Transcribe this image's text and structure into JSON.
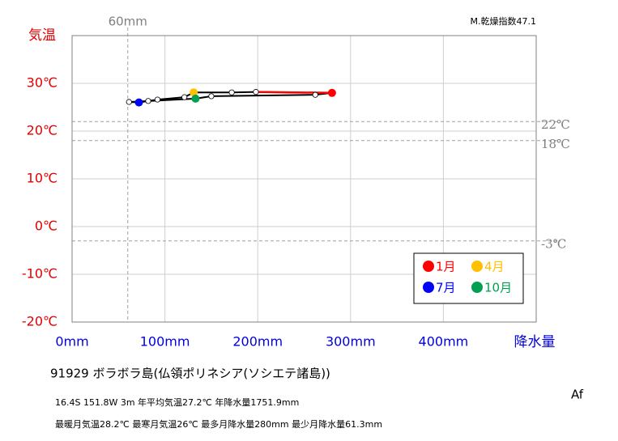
{
  "chart_data": {
    "type": "line",
    "title": "91929  ボラボラ島(仏領ポリネシア(ソシエテ諸島))",
    "info": [
      "16.4S  151.8W 3m  年平均気温27.2℃ 年降水量1751.9mm",
      "最暖月気温28.2℃ 最寒月気温26℃ 最多月降水量280mm 最少月降水量61.3mm"
    ],
    "climate_class": "Af",
    "index_label": "M.乾燥指数47.1",
    "x_label": "降水量",
    "y_label": "気温",
    "x": [
      280,
      198,
      172,
      131,
      121,
      92,
      72,
      61.3,
      82,
      133,
      150,
      262
    ],
    "values": [
      28.0,
      28.2,
      28.1,
      28.1,
      27.1,
      26.6,
      26.0,
      26.1,
      26.3,
      26.8,
      27.3,
      27.6
    ],
    "point_colors": [
      "#ff0000",
      "#ffffff",
      "#ffffff",
      "#ffc000",
      "#ffffff",
      "#ffffff",
      "#0000ff",
      "#ffffff",
      "#ffffff",
      "#00a050",
      "#ffffff",
      "#ffffff"
    ],
    "line_color": "#000000",
    "first_segment_color": "#ff0000",
    "legend": [
      {
        "name": "1月",
        "color": "#ff0000"
      },
      {
        "name": "4月",
        "color": "#ffc000"
      },
      {
        "name": "7月",
        "color": "#0000ff"
      },
      {
        "name": "10月",
        "color": "#00a050"
      }
    ],
    "xlim": [
      0,
      500
    ],
    "xticks": [
      {
        "value": 0,
        "label": "0mm"
      },
      {
        "value": 100,
        "label": "100mm"
      },
      {
        "value": 200,
        "label": "200mm"
      },
      {
        "value": 300,
        "label": "300mm"
      },
      {
        "value": 400,
        "label": "400mm"
      }
    ],
    "ylim": [
      -20,
      40
    ],
    "yticks": [
      {
        "value": -20,
        "label": "-20℃"
      },
      {
        "value": -10,
        "label": "-10℃"
      },
      {
        "value": 0,
        "label": "0℃"
      },
      {
        "value": 10,
        "label": "10℃"
      },
      {
        "value": 20,
        "label": "20℃"
      },
      {
        "value": 30,
        "label": "30℃"
      }
    ],
    "grid": true,
    "reference_lines": [
      {
        "axis": "x",
        "value": 60,
        "label": "60mm"
      },
      {
        "axis": "y",
        "value": 22,
        "label": "22℃"
      },
      {
        "axis": "y",
        "value": 18,
        "label": "18℃"
      },
      {
        "axis": "y",
        "value": -3,
        "label": "-3℃"
      }
    ]
  }
}
